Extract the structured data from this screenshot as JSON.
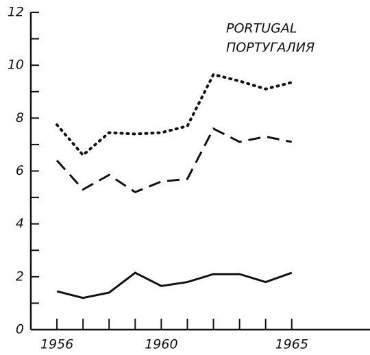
{
  "chart_data": {
    "type": "line",
    "title_lines": [
      "PORTUGAL",
      "ПОРТУГАЛИЯ"
    ],
    "x": [
      1956,
      1957,
      1958,
      1959,
      1960,
      1961,
      1962,
      1963,
      1964,
      1965
    ],
    "series": [
      {
        "color": "#111111",
        "style": "dotted",
        "values": [
          7.75,
          6.6,
          7.45,
          7.4,
          7.45,
          7.7,
          9.65,
          9.4,
          9.1,
          9.35
        ]
      },
      {
        "color": "#111111",
        "style": "dashed",
        "values": [
          6.4,
          5.3,
          5.85,
          5.2,
          5.6,
          5.7,
          7.6,
          7.1,
          7.3,
          7.1
        ]
      },
      {
        "color": "#111111",
        "style": "solid",
        "values": [
          1.45,
          1.2,
          1.4,
          2.15,
          1.65,
          1.8,
          2.1,
          2.1,
          1.8,
          2.15
        ]
      }
    ],
    "xlim": [
      1955,
      1968
    ],
    "xticks": [
      1956,
      1960,
      1965
    ],
    "xminorticks": [
      1957,
      1958,
      1959,
      1961,
      1962,
      1963,
      1964
    ],
    "ylim": [
      0,
      12
    ],
    "yticks": [
      0,
      2,
      4,
      6,
      8,
      10,
      12
    ],
    "yminorticks": [
      1,
      3,
      5,
      7,
      9,
      11
    ],
    "grid": false
  }
}
